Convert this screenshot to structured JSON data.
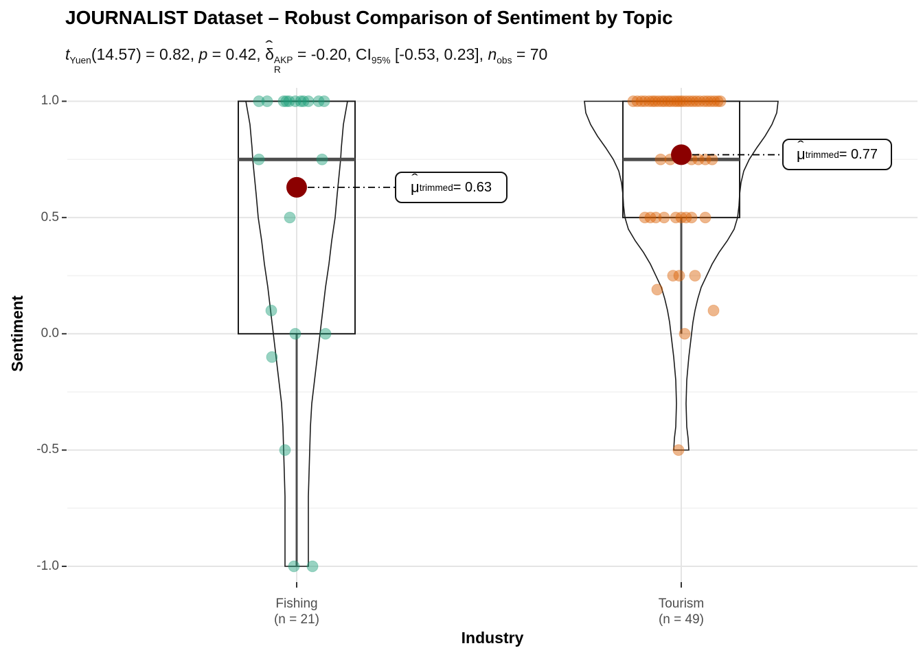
{
  "title": "JOURNALIST Dataset – Robust Comparison of Sentiment by Topic",
  "subtitle": {
    "t": "t",
    "t_sub": "Yuen",
    "s1": "(14.57) = 0.82, ",
    "p": "p",
    "s2": " = 0.42, ",
    "hat": "ˆ",
    "delta": "δ",
    "delta_sup": "AKP",
    "delta_sub": "R",
    "s3": " = -0.20, CI",
    "ci_sub": "95%",
    "s4": " [-0.53, 0.23], ",
    "n": "n",
    "n_sub": "obs",
    "s5": " = 70"
  },
  "y_axis": {
    "label": "Sentiment",
    "ticks": [
      "1.0",
      "0.5",
      "0.0",
      "-0.5",
      "-1.0"
    ]
  },
  "x_axis": {
    "label": "Industry",
    "ticks": [
      {
        "line1": "Fishing",
        "line2": "(n = 21)"
      },
      {
        "line1": "Tourism",
        "line2": "(n = 49)"
      }
    ]
  },
  "annotations": [
    {
      "hat": "ˆ",
      "mu": "μ",
      "sub": "trimmed",
      "rest": " = 0.63"
    },
    {
      "hat": "ˆ",
      "mu": "μ",
      "sub": "trimmed",
      "rest": " = 0.77"
    }
  ],
  "chart_data": {
    "type": "violin+box+jitter",
    "title": "JOURNALIST Dataset – Robust Comparison of Sentiment by Topic",
    "xlabel": "Industry",
    "ylabel": "Sentiment",
    "ylim": [
      -1.05,
      1.05
    ],
    "y_major_ticks": [
      1.0,
      0.5,
      0.0,
      -0.5,
      -1.0
    ],
    "y_minor_ticks": [
      0.75,
      0.25,
      -0.25,
      -0.75
    ],
    "grid": true,
    "legend": "none",
    "stats": {
      "test": "Yuen trimmed-means t-test",
      "t": 0.82,
      "df": 14.57,
      "p": 0.42,
      "effect_delta_R_AKP": -0.2,
      "ci95": [
        -0.53,
        0.23
      ],
      "n_obs": 70
    },
    "mean_color": "#8B0000",
    "grid_major_color": "#E4E4E4",
    "grid_minor_color": "#F2F2F2",
    "groups": [
      {
        "name": "Fishing",
        "n": 21,
        "color": "#1B9E77",
        "trimmed_mean": 0.63,
        "box": {
          "q1": 0.0,
          "median": 0.75,
          "q3": 1.0,
          "whisker_low": -1.0,
          "whisker_high": 1.0
        },
        "points": [
          [
            1.0,
            -55
          ],
          [
            1.0,
            -43
          ],
          [
            1.0,
            -19
          ],
          [
            1.0,
            -15
          ],
          [
            1.0,
            -11
          ],
          [
            1.0,
            -2
          ],
          [
            1.0,
            6
          ],
          [
            1.0,
            10
          ],
          [
            1.0,
            17
          ],
          [
            1.0,
            32
          ],
          [
            1.0,
            40
          ],
          [
            0.75,
            -55
          ],
          [
            0.75,
            37
          ],
          [
            0.5,
            -10
          ],
          [
            0.1,
            -37
          ],
          [
            0.0,
            -2
          ],
          [
            0.0,
            42
          ],
          [
            -0.1,
            -36
          ],
          [
            -0.5,
            -17
          ],
          [
            -1.0,
            -4
          ],
          [
            -1.0,
            23
          ]
        ],
        "violin_profile": [
          [
            1.0,
            74
          ],
          [
            0.9,
            68
          ],
          [
            0.8,
            65
          ],
          [
            0.75,
            64
          ],
          [
            0.6,
            59
          ],
          [
            0.5,
            56
          ],
          [
            0.4,
            51
          ],
          [
            0.3,
            47
          ],
          [
            0.2,
            42
          ],
          [
            0.1,
            38
          ],
          [
            0.0,
            34
          ],
          [
            -0.1,
            30
          ],
          [
            -0.2,
            26
          ],
          [
            -0.3,
            22
          ],
          [
            -0.4,
            20
          ],
          [
            -0.5,
            19
          ],
          [
            -0.6,
            18
          ],
          [
            -0.7,
            17
          ],
          [
            -0.8,
            17
          ],
          [
            -0.9,
            17
          ],
          [
            -1.0,
            17
          ]
        ]
      },
      {
        "name": "Tourism",
        "n": 49,
        "color": "#D95F02",
        "trimmed_mean": 0.77,
        "box": {
          "q1": 0.5,
          "median": 0.75,
          "q3": 1.0,
          "whisker_low": 0.0,
          "whisker_high": 1.0
        },
        "points": [
          [
            1.0,
            -70
          ],
          [
            1.0,
            -64
          ],
          [
            1.0,
            -58
          ],
          [
            1.0,
            -53
          ],
          [
            1.0,
            -47
          ],
          [
            1.0,
            -42
          ],
          [
            1.0,
            -38
          ],
          [
            1.0,
            -33
          ],
          [
            1.0,
            -28
          ],
          [
            1.0,
            -24
          ],
          [
            1.0,
            -19
          ],
          [
            1.0,
            -15
          ],
          [
            1.0,
            -10
          ],
          [
            1.0,
            -6
          ],
          [
            1.0,
            -2
          ],
          [
            1.0,
            2
          ],
          [
            1.0,
            7
          ],
          [
            1.0,
            12
          ],
          [
            1.0,
            17
          ],
          [
            1.0,
            22
          ],
          [
            1.0,
            27
          ],
          [
            1.0,
            33
          ],
          [
            1.0,
            38
          ],
          [
            1.0,
            43
          ],
          [
            1.0,
            48
          ],
          [
            1.0,
            53
          ],
          [
            1.0,
            57
          ],
          [
            0.75,
            -30
          ],
          [
            0.75,
            -16
          ],
          [
            0.75,
            15
          ],
          [
            0.75,
            25
          ],
          [
            0.75,
            35
          ],
          [
            0.75,
            45
          ],
          [
            0.5,
            -53
          ],
          [
            0.5,
            -45
          ],
          [
            0.5,
            -37
          ],
          [
            0.5,
            -25
          ],
          [
            0.5,
            -8
          ],
          [
            0.5,
            0
          ],
          [
            0.5,
            7
          ],
          [
            0.5,
            15
          ],
          [
            0.5,
            35
          ],
          [
            0.25,
            -12
          ],
          [
            0.25,
            -3
          ],
          [
            0.25,
            20
          ],
          [
            0.19,
            -35
          ],
          [
            0.1,
            47
          ],
          [
            0.0,
            5
          ],
          [
            -0.5,
            -4
          ]
        ],
        "violin_profile": [
          [
            1.0,
            141
          ],
          [
            0.95,
            139
          ],
          [
            0.9,
            132
          ],
          [
            0.85,
            122
          ],
          [
            0.8,
            110
          ],
          [
            0.75,
            99
          ],
          [
            0.7,
            91
          ],
          [
            0.65,
            87
          ],
          [
            0.6,
            85
          ],
          [
            0.55,
            84
          ],
          [
            0.5,
            82
          ],
          [
            0.45,
            77
          ],
          [
            0.4,
            67
          ],
          [
            0.35,
            55
          ],
          [
            0.3,
            45
          ],
          [
            0.25,
            37
          ],
          [
            0.2,
            29
          ],
          [
            0.15,
            24
          ],
          [
            0.1,
            20
          ],
          [
            0.05,
            17
          ],
          [
            0.0,
            15
          ],
          [
            -0.1,
            11
          ],
          [
            -0.2,
            8
          ],
          [
            -0.3,
            7
          ],
          [
            -0.4,
            8
          ],
          [
            -0.45,
            10
          ],
          [
            -0.5,
            11
          ]
        ]
      }
    ]
  }
}
